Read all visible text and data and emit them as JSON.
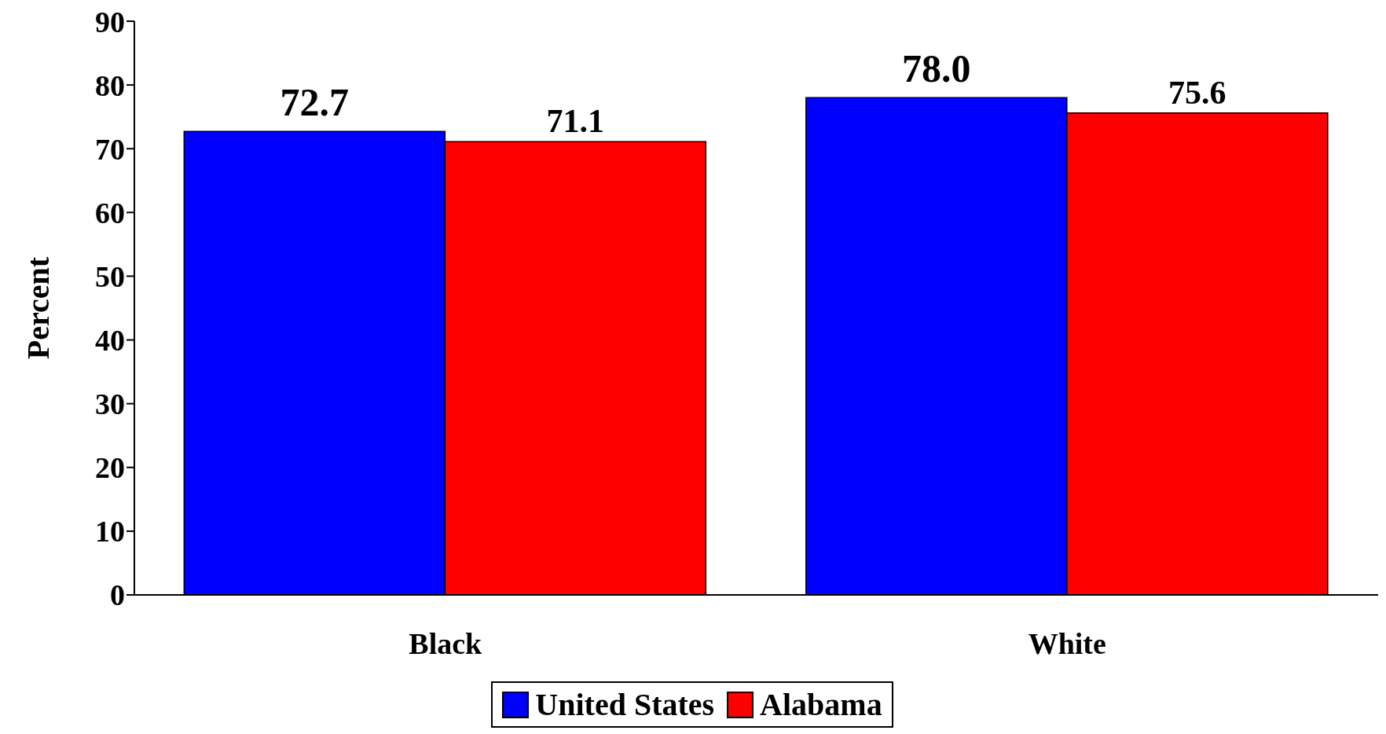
{
  "chart_data": {
    "type": "bar",
    "ylabel": "Percent",
    "categories": [
      "Black",
      "White"
    ],
    "series": [
      {
        "name": "United States",
        "color": "#0000ff",
        "values": [
          72.7,
          78.0
        ],
        "value_labels": [
          "72.7",
          "78.0"
        ]
      },
      {
        "name": "Alabama",
        "color": "#ff0000",
        "values": [
          71.1,
          75.6
        ],
        "value_labels": [
          "71.1",
          "75.6"
        ]
      }
    ],
    "ylim": [
      0,
      90
    ],
    "yticks": [
      0,
      10,
      20,
      30,
      40,
      50,
      60,
      70,
      80,
      90
    ],
    "grid": false,
    "legend": "bottom"
  }
}
